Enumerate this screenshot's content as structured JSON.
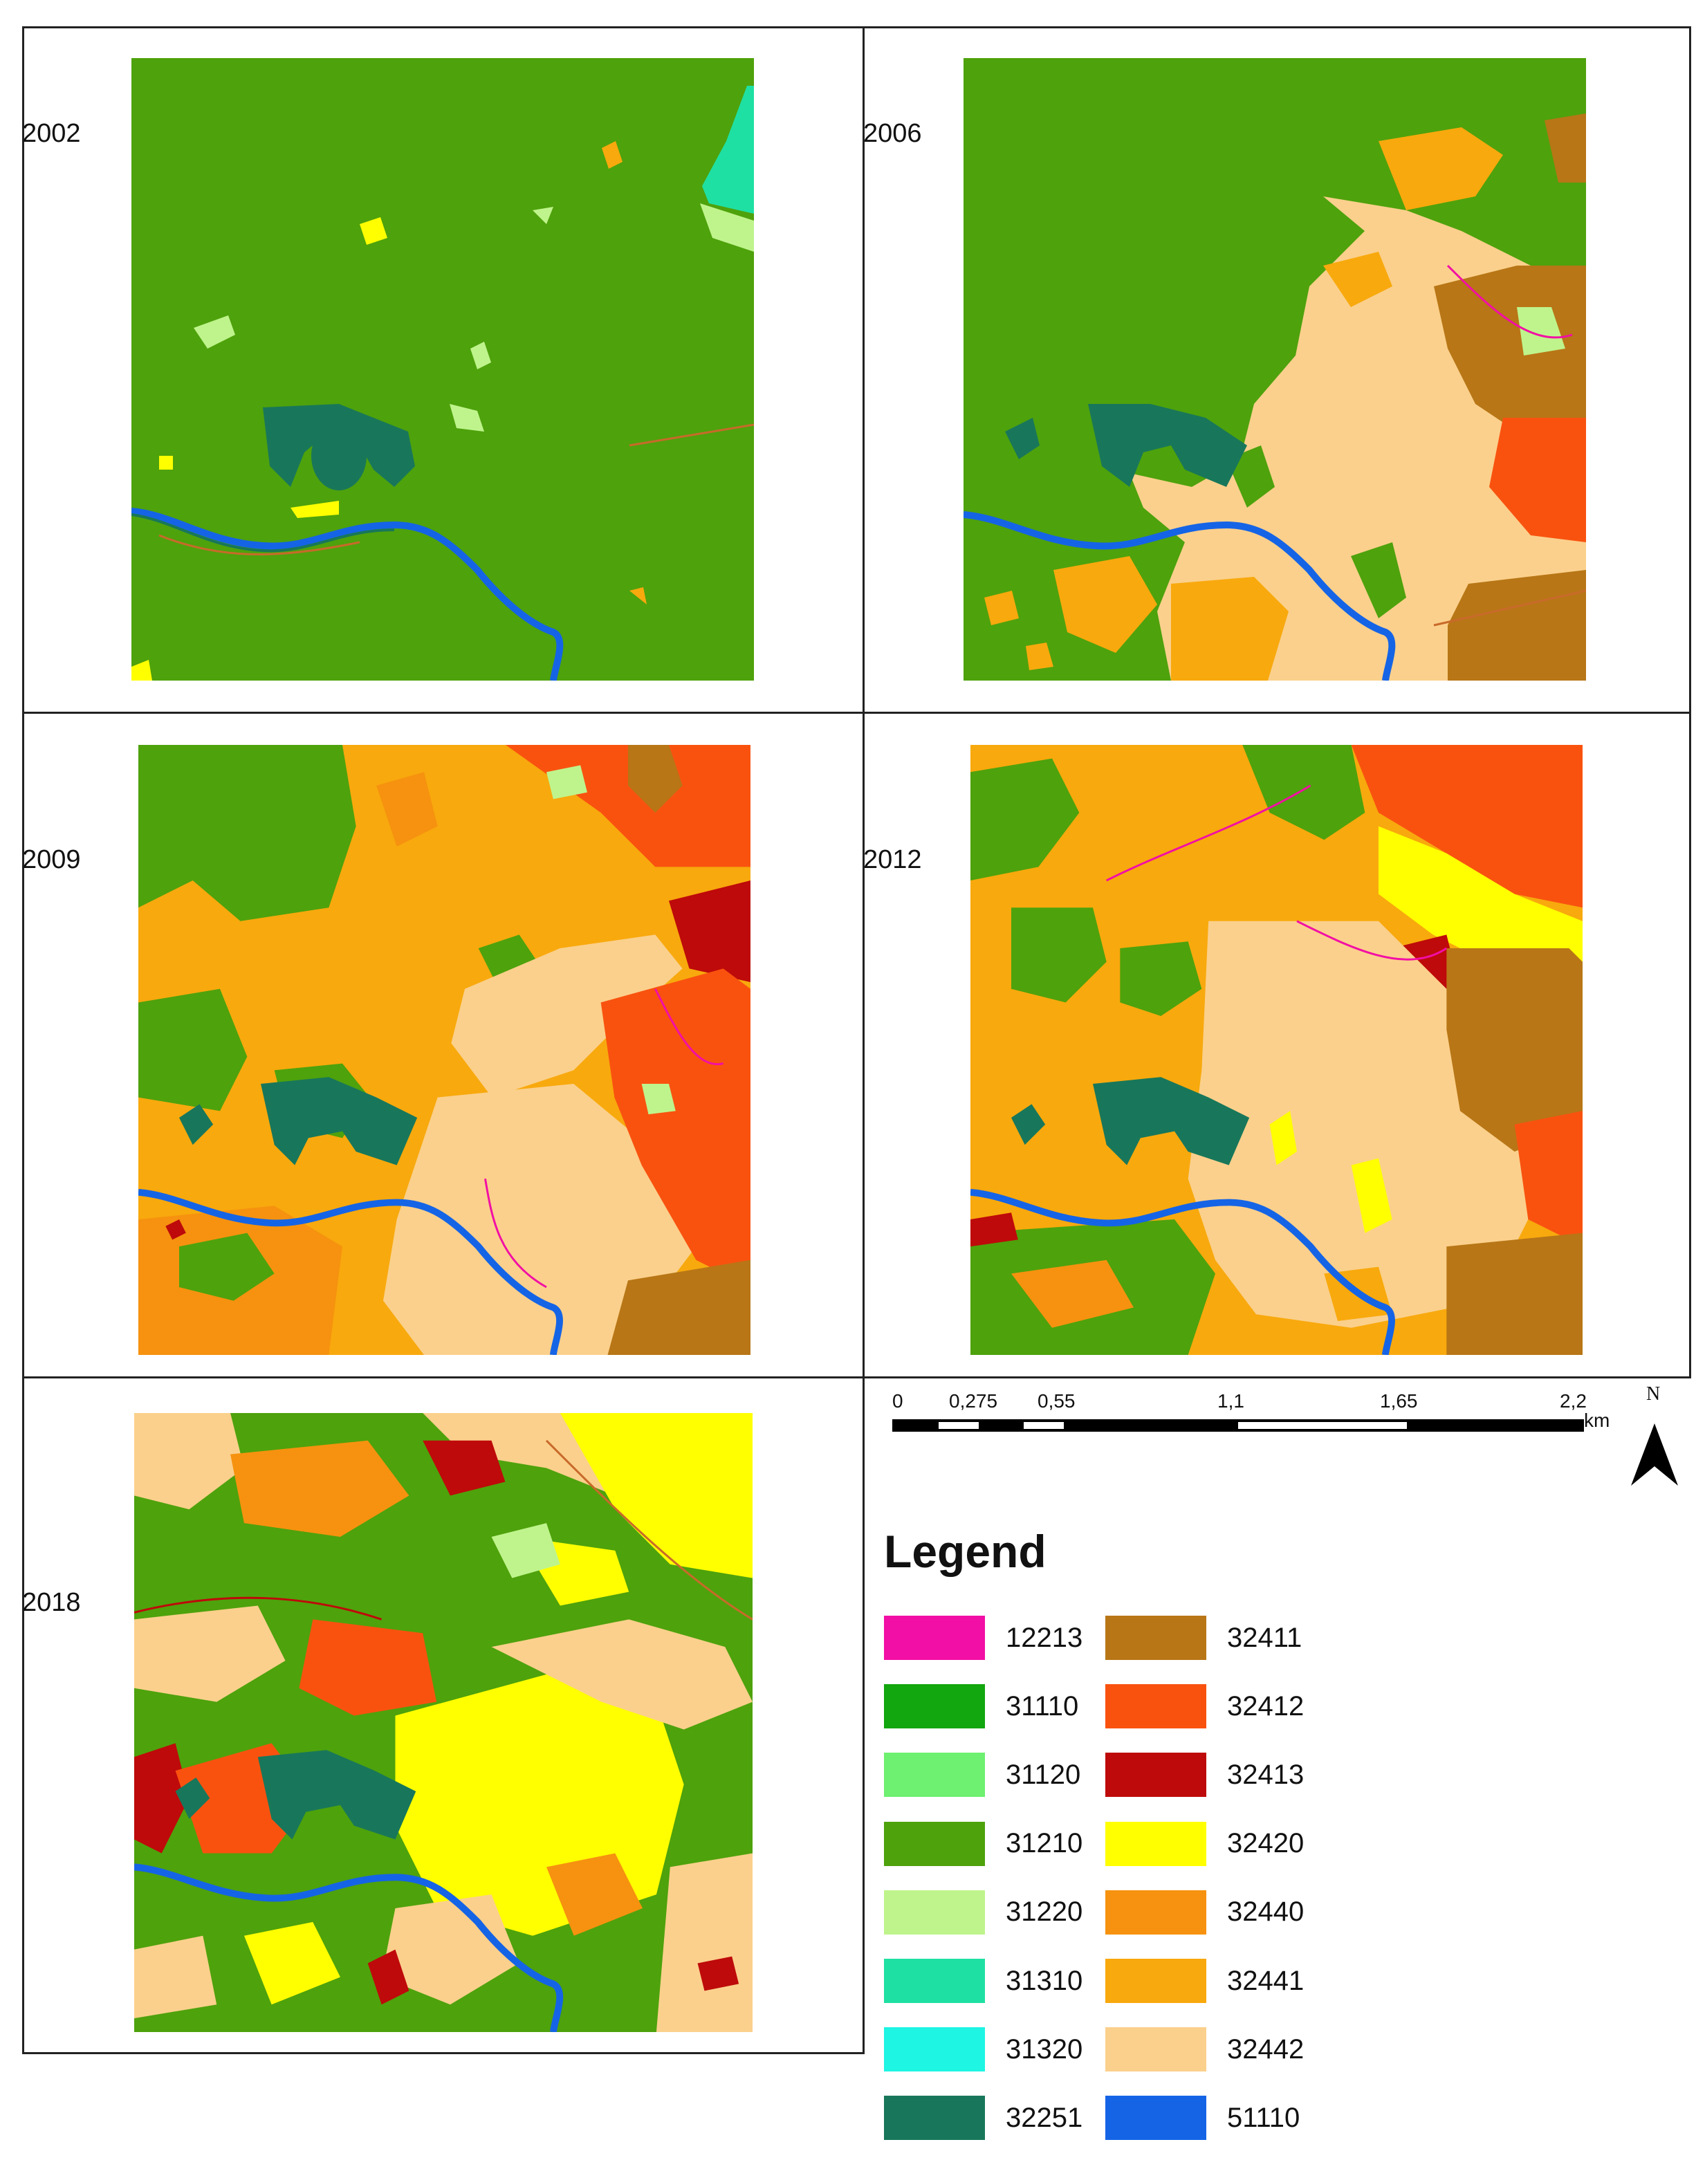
{
  "panels": [
    {
      "year": "2002"
    },
    {
      "year": "2006"
    },
    {
      "year": "2009"
    },
    {
      "year": "2012"
    },
    {
      "year": "2018"
    }
  ],
  "scalebar": {
    "ticks": [
      "0",
      "0,275",
      "0,55",
      "1,1",
      "1,65",
      "2,2"
    ],
    "unit": "km",
    "north_label": "N"
  },
  "legend": {
    "title": "Legend",
    "items": [
      {
        "code": "12213",
        "color": "#f20fa5"
      },
      {
        "code": "31110",
        "color": "#12a60f"
      },
      {
        "code": "31120",
        "color": "#6ef070"
      },
      {
        "code": "31210",
        "color": "#4ea20c"
      },
      {
        "code": "31220",
        "color": "#bff48c"
      },
      {
        "code": "31310",
        "color": "#1fe0a3"
      },
      {
        "code": "31320",
        "color": "#1ef5e3"
      },
      {
        "code": "32251",
        "color": "#18775a"
      },
      {
        "code": "32411",
        "color": "#b87616"
      },
      {
        "code": "32412",
        "color": "#f9520f"
      },
      {
        "code": "32413",
        "color": "#be0a0a"
      },
      {
        "code": "32420",
        "color": "#ffff00"
      },
      {
        "code": "32440",
        "color": "#f6920f"
      },
      {
        "code": "32441",
        "color": "#f8a90d"
      },
      {
        "code": "32442",
        "color": "#fbd08c"
      },
      {
        "code": "51110",
        "color": "#1564e6"
      }
    ]
  }
}
